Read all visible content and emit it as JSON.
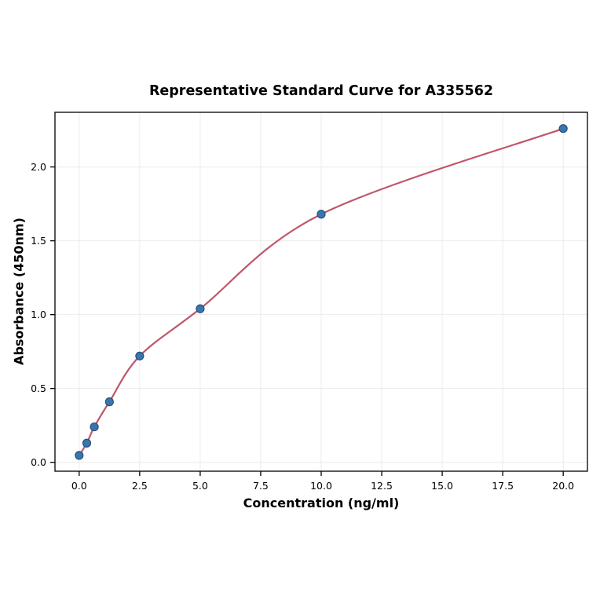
{
  "page": {
    "background": "#ffffff"
  },
  "chart_data": {
    "type": "scatter",
    "title": "Representative Standard Curve for A335562",
    "xlabel": "Concentration (ng/ml)",
    "ylabel": "Absorbance (450nm)",
    "points": {
      "x": [
        0,
        0.313,
        0.625,
        1.25,
        2.5,
        5,
        10,
        20
      ],
      "y": [
        0.047,
        0.13,
        0.24,
        0.41,
        0.72,
        1.04,
        1.68,
        2.26
      ]
    },
    "fit_line": true,
    "xlim": [
      -1,
      21
    ],
    "ylim": [
      -0.06,
      2.37
    ],
    "xticks": {
      "values": [
        0,
        2.5,
        5,
        7.5,
        10,
        12.5,
        15,
        17.5,
        20
      ],
      "labels": [
        "0.0",
        "2.5",
        "5.0",
        "7.5",
        "10.0",
        "12.5",
        "15.0",
        "17.5",
        "20.0"
      ]
    },
    "yticks": {
      "values": [
        0,
        0.5,
        1,
        1.5,
        2
      ],
      "labels": [
        "0.0",
        "0.5",
        "1.0",
        "1.5",
        "2.0"
      ]
    },
    "grid": true,
    "legend": null,
    "colors": {
      "curve": "#c0566a",
      "point_fill": "#3a76ae",
      "point_edge": "#27517c",
      "grid": "#ebebeb",
      "frame": "#000000",
      "text": "#000000"
    }
  }
}
